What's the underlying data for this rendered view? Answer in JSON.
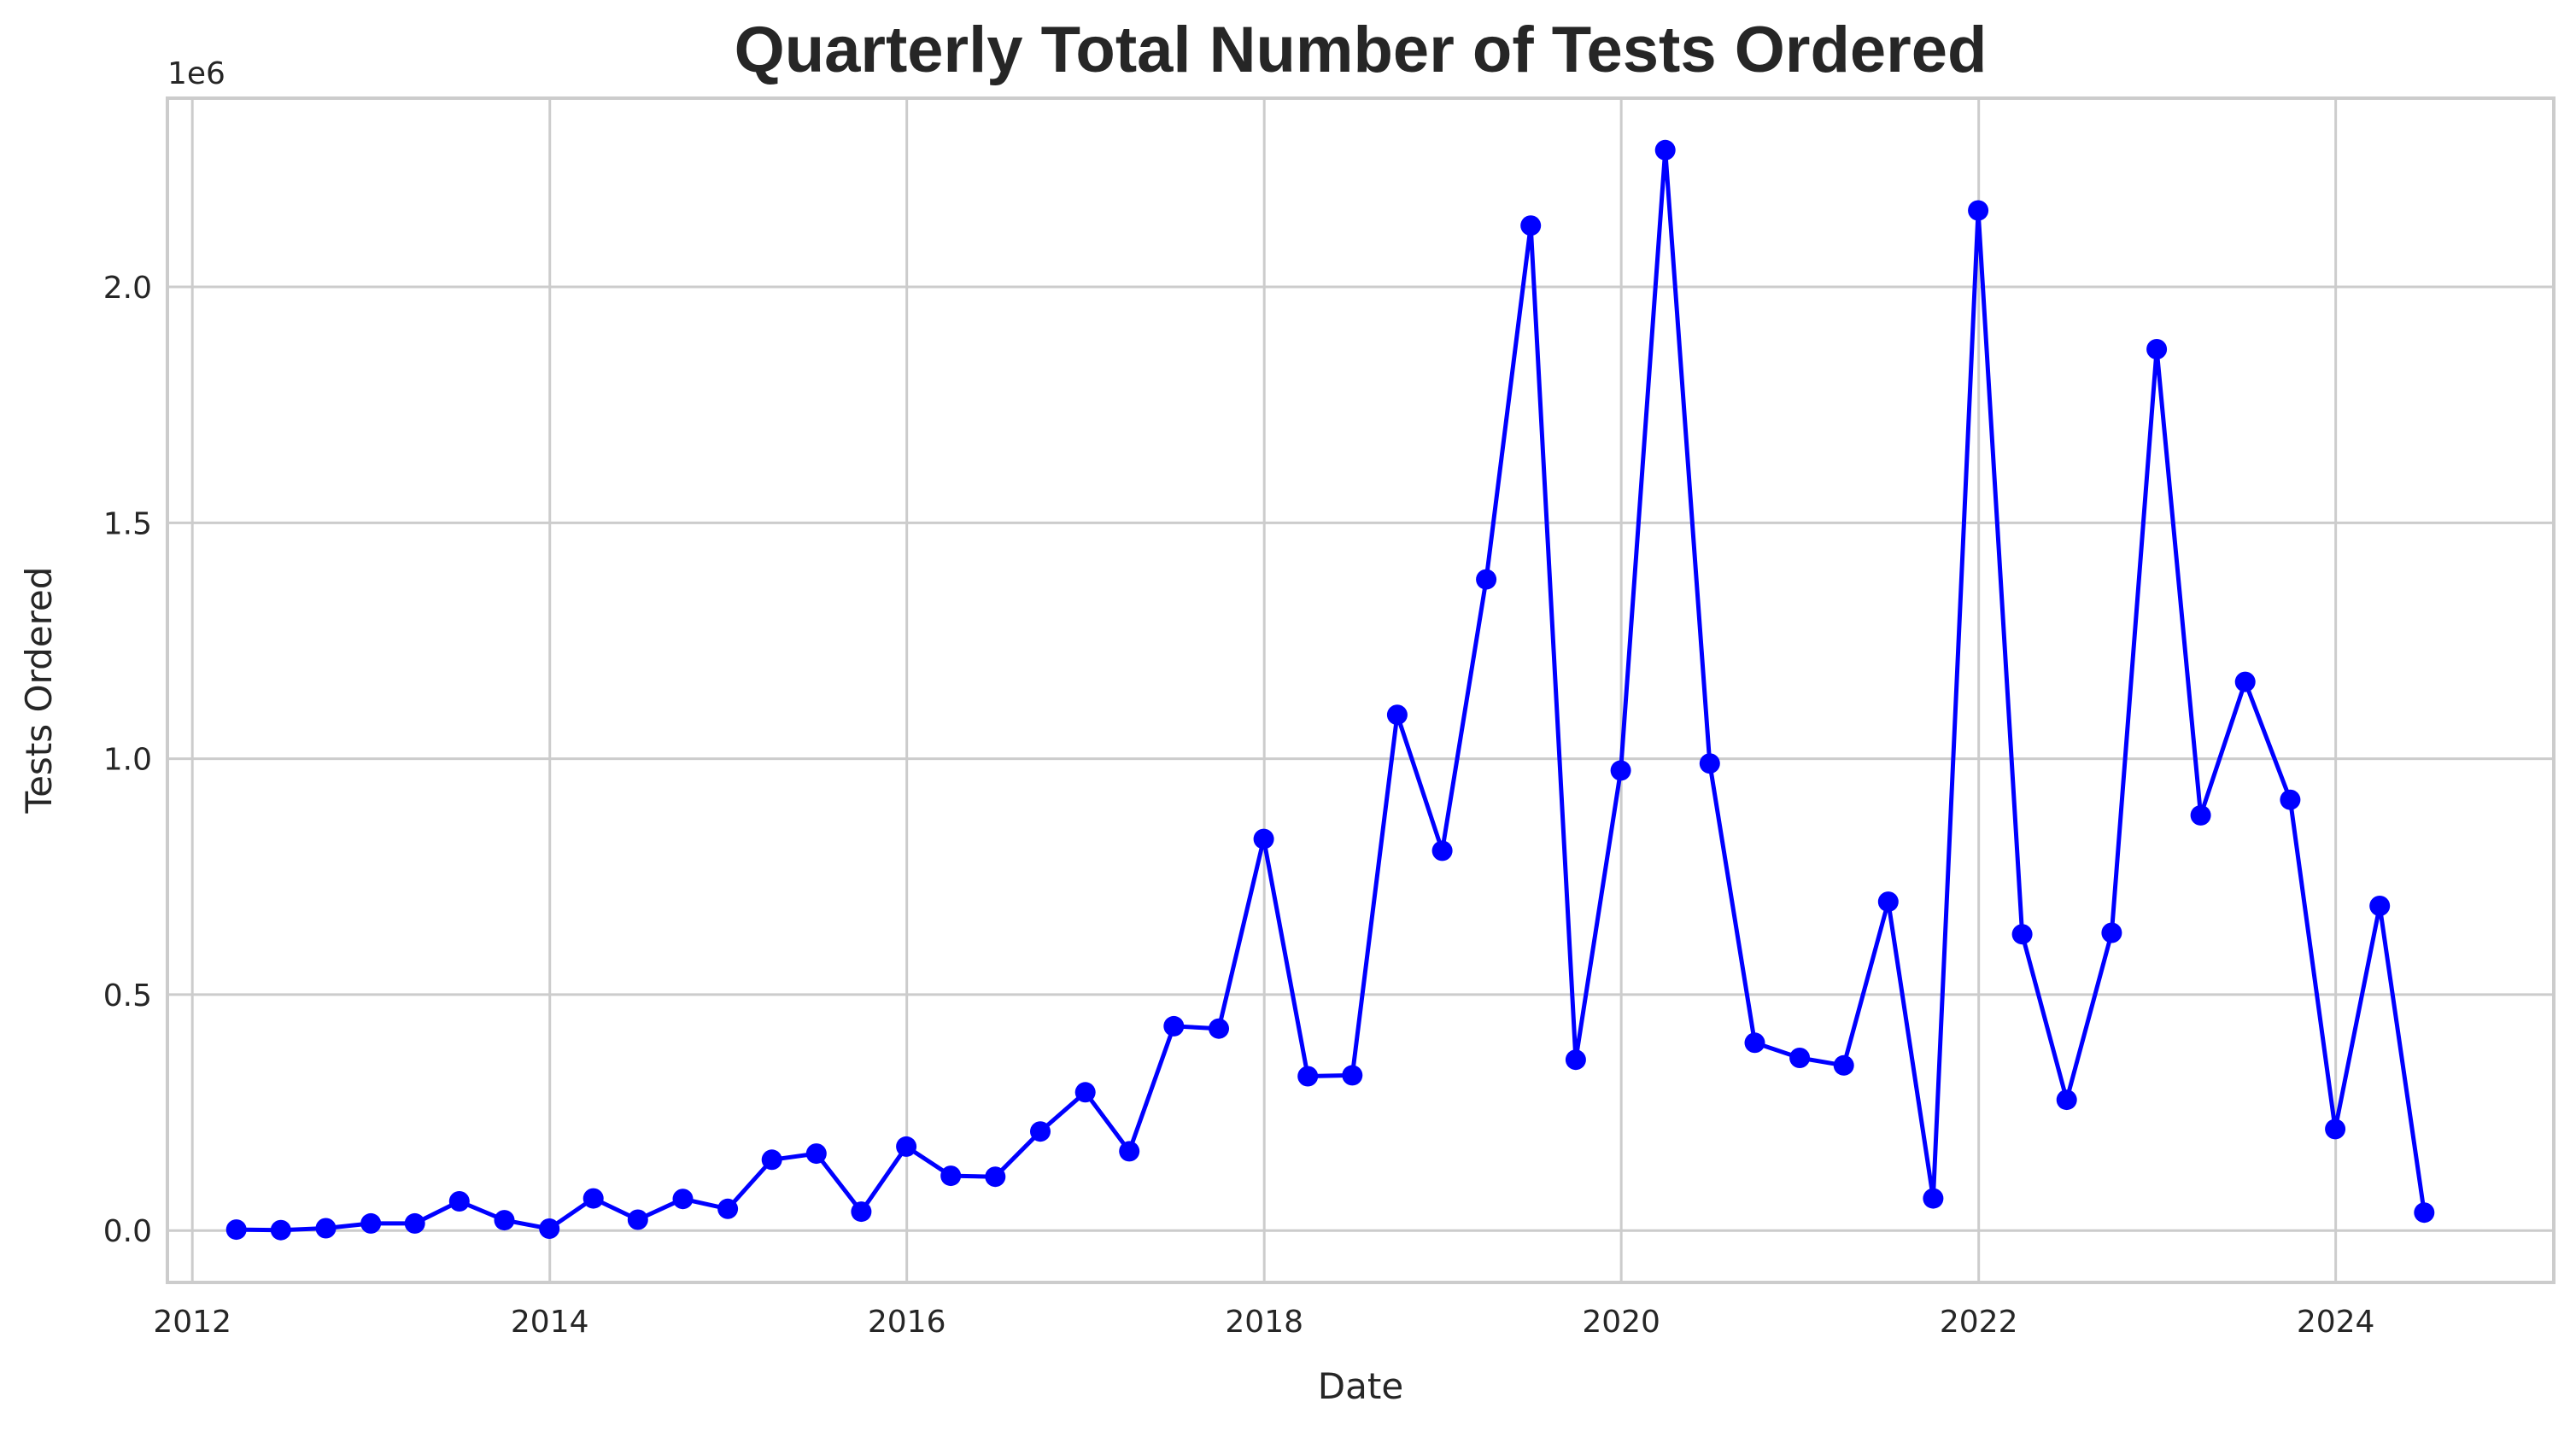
{
  "chart_data": {
    "type": "line",
    "title": "Quarterly Total Number of Tests Ordered",
    "xlabel": "Date",
    "ylabel": "Tests Ordered",
    "y_offset_label": "1e6",
    "xlim": [
      "2011-11-11",
      "2025-03-22"
    ],
    "ylim": [
      -110000,
      2400000
    ],
    "x_ticks": [
      {
        "value": "2012-01-01",
        "label": "2012"
      },
      {
        "value": "2014-01-01",
        "label": "2014"
      },
      {
        "value": "2016-01-01",
        "label": "2016"
      },
      {
        "value": "2018-01-01",
        "label": "2018"
      },
      {
        "value": "2020-01-01",
        "label": "2020"
      },
      {
        "value": "2022-01-01",
        "label": "2022"
      },
      {
        "value": "2024-01-01",
        "label": "2024"
      }
    ],
    "y_ticks": [
      {
        "value": 0,
        "label": "0.0"
      },
      {
        "value": 500000,
        "label": "0.5"
      },
      {
        "value": 1000000,
        "label": "1.0"
      },
      {
        "value": 1500000,
        "label": "1.5"
      },
      {
        "value": 2000000,
        "label": "2.0"
      }
    ],
    "grid": true,
    "color": "#0000ff",
    "series": [
      {
        "x": [
          "2012-03-31",
          "2012-06-30",
          "2012-09-30",
          "2012-12-31",
          "2013-03-31",
          "2013-06-30",
          "2013-09-30",
          "2013-12-31",
          "2014-03-31",
          "2014-06-30",
          "2014-09-30",
          "2014-12-31",
          "2015-03-31",
          "2015-06-30",
          "2015-09-30",
          "2015-12-31",
          "2016-03-31",
          "2016-06-30",
          "2016-09-30",
          "2016-12-31",
          "2017-03-31",
          "2017-06-30",
          "2017-09-30",
          "2017-12-31",
          "2018-03-31",
          "2018-06-30",
          "2018-09-30",
          "2018-12-31",
          "2019-03-31",
          "2019-06-30",
          "2019-09-30",
          "2019-12-31",
          "2020-03-31",
          "2020-06-30",
          "2020-09-30",
          "2020-12-31",
          "2021-03-31",
          "2021-06-30",
          "2021-09-30",
          "2021-12-31",
          "2022-03-31",
          "2022-06-30",
          "2022-09-30",
          "2022-12-31",
          "2023-03-31",
          "2023-06-30",
          "2023-09-30",
          "2023-12-31",
          "2024-03-31",
          "2024-06-30"
        ],
        "y": [
          2000,
          1000,
          5000,
          15000,
          15000,
          62000,
          22000,
          4000,
          68000,
          23000,
          67000,
          46000,
          150000,
          163000,
          40000,
          178000,
          116000,
          114000,
          210000,
          293000,
          168000,
          433000,
          428000,
          830000,
          327000,
          329000,
          1093000,
          805000,
          1380000,
          2130000,
          362000,
          975000,
          2290000,
          990000,
          398000,
          366000,
          350000,
          697000,
          68000,
          2162000,
          628000,
          277000,
          631000,
          1868000,
          880000,
          1163000,
          913000,
          215000,
          688000,
          38000
        ]
      }
    ]
  }
}
